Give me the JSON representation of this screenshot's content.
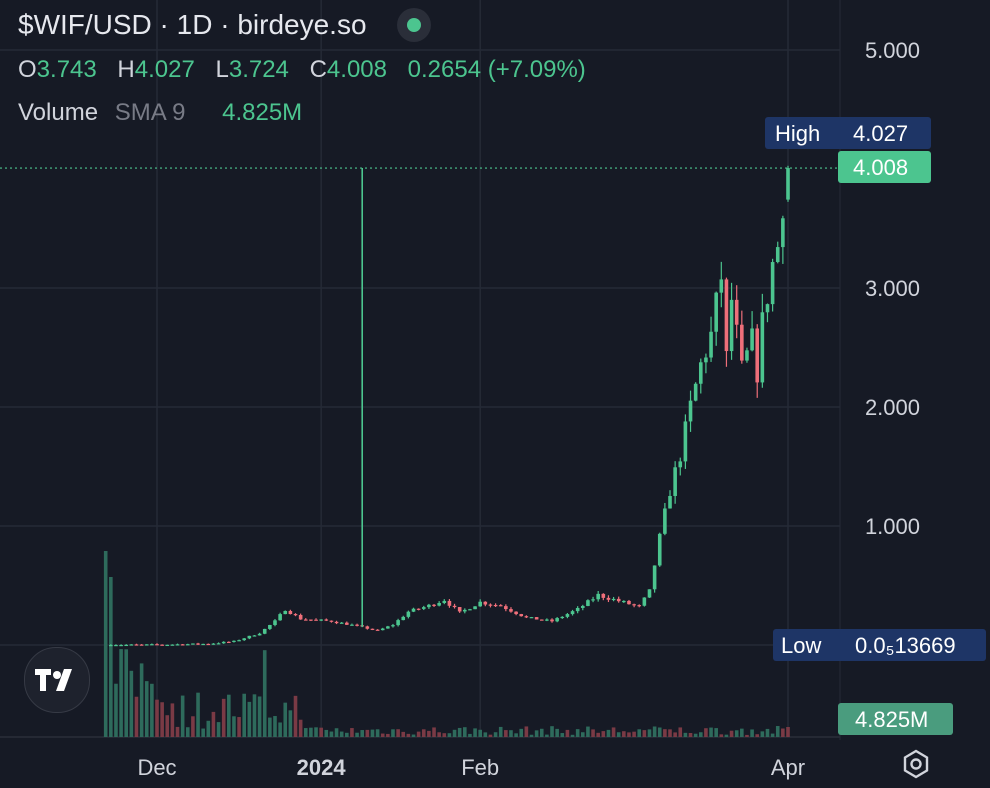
{
  "header": {
    "title": "$WIF/USD · 1D · birdeye.so",
    "open_label": "O",
    "open": "3.743",
    "high_label": "H",
    "high": "4.027",
    "low_label": "L",
    "low": "3.724",
    "close_label": "C",
    "close": "4.008",
    "change": "0.2654 (+7.09%)"
  },
  "volume_legend": {
    "label": "Volume",
    "indicator": "SMA 9",
    "value": "4.825M"
  },
  "price_tags": {
    "high_label": "High",
    "high_value": "4.027",
    "current_value": "4.008",
    "low_label": "Low",
    "low_value": "0.0₅13669",
    "volume_value": "4.825M"
  },
  "colors": {
    "background": "#161a25",
    "up": "#4cc58f",
    "down": "#ef6f7a",
    "grid": "#252a36",
    "tag_bg": "#1e3566"
  },
  "icons": {
    "logo": "tradingview-logo-icon",
    "settings": "gear-icon"
  },
  "chart_data": {
    "type": "candlestick",
    "symbol": "$WIF/USD",
    "interval": "1D",
    "y_ticks": [
      "5.000",
      "3.000",
      "2.000",
      "1.000"
    ],
    "y_tick_values": [
      5,
      3,
      2,
      1
    ],
    "x_ticks": [
      "Dec",
      "2024",
      "Feb",
      "Apr"
    ],
    "ylim": [
      0,
      5
    ],
    "grid": true,
    "price_path": [
      [
        "2023-11-20",
        0.0
      ],
      [
        "2023-11-30",
        0.002
      ],
      [
        "2023-12-10",
        0.01
      ],
      [
        "2023-12-15",
        0.03
      ],
      [
        "2023-12-20",
        0.1
      ],
      [
        "2023-12-23",
        0.2
      ],
      [
        "2023-12-25",
        0.3
      ],
      [
        "2023-12-28",
        0.22
      ],
      [
        "2024-01-03",
        0.2
      ],
      [
        "2024-01-08",
        0.16
      ],
      [
        "2024-01-12",
        0.12
      ],
      [
        "2024-01-15",
        0.17
      ],
      [
        "2024-01-18",
        0.28
      ],
      [
        "2024-01-22",
        0.33
      ],
      [
        "2024-01-25",
        0.38
      ],
      [
        "2024-01-28",
        0.27
      ],
      [
        "2024-02-01",
        0.36
      ],
      [
        "2024-02-05",
        0.33
      ],
      [
        "2024-02-10",
        0.23
      ],
      [
        "2024-02-15",
        0.2
      ],
      [
        "2024-02-20",
        0.3
      ],
      [
        "2024-02-24",
        0.42
      ],
      [
        "2024-02-28",
        0.37
      ],
      [
        "2024-03-03",
        0.32
      ],
      [
        "2024-03-05",
        0.45
      ],
      [
        "2024-03-07",
        0.9
      ],
      [
        "2024-03-09",
        1.3
      ],
      [
        "2024-03-11",
        1.6
      ],
      [
        "2024-03-13",
        2.0
      ],
      [
        "2024-03-15",
        2.35
      ],
      [
        "2024-03-17",
        2.6
      ],
      [
        "2024-03-19",
        3.1
      ],
      [
        "2024-03-20",
        2.4
      ],
      [
        "2024-03-21",
        2.9
      ],
      [
        "2024-03-23",
        2.3
      ],
      [
        "2024-03-25",
        2.55
      ],
      [
        "2024-03-26",
        2.3
      ],
      [
        "2024-03-27",
        2.7
      ],
      [
        "2024-03-29",
        3.2
      ],
      [
        "2024-03-30",
        3.35
      ],
      [
        "2024-03-31",
        3.75
      ],
      [
        "2024-04-01",
        4.008
      ]
    ],
    "spike": {
      "date": "2024-01-09",
      "high": 4.008
    },
    "last": {
      "open": 3.743,
      "high": 4.027,
      "low": 3.724,
      "close": 4.008
    },
    "volume": {
      "sma_period": 9,
      "last": "4.825M"
    }
  }
}
